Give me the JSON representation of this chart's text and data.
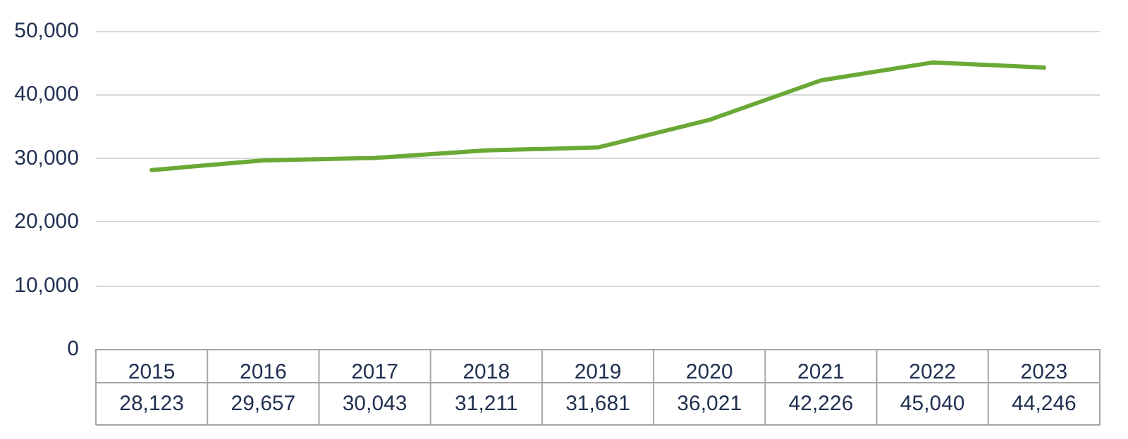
{
  "chart_data": {
    "type": "line",
    "categories": [
      "2015",
      "2016",
      "2017",
      "2018",
      "2019",
      "2020",
      "2021",
      "2022",
      "2023"
    ],
    "series": [
      {
        "color": "#6aa936",
        "values": [
          28123,
          29657,
          30043,
          31211,
          31681,
          36021,
          42226,
          45040,
          44246
        ],
        "value_labels": [
          "28,123",
          "29,657",
          "30,043",
          "31,211",
          "31,681",
          "36,021",
          "42,226",
          "45,040",
          "44,246"
        ]
      }
    ],
    "ylim": [
      0,
      50000
    ],
    "yticks": [
      0,
      {
        "value": 10000,
        "label": "10,000"
      },
      {
        "value": 20000,
        "label": "20,000"
      },
      {
        "value": 30000,
        "label": "30,000"
      },
      {
        "value": 40000,
        "label": "40,000"
      },
      {
        "value": 50000,
        "label": "50,000"
      }
    ],
    "grid": "y",
    "marker": "none",
    "line_style": "solid"
  }
}
